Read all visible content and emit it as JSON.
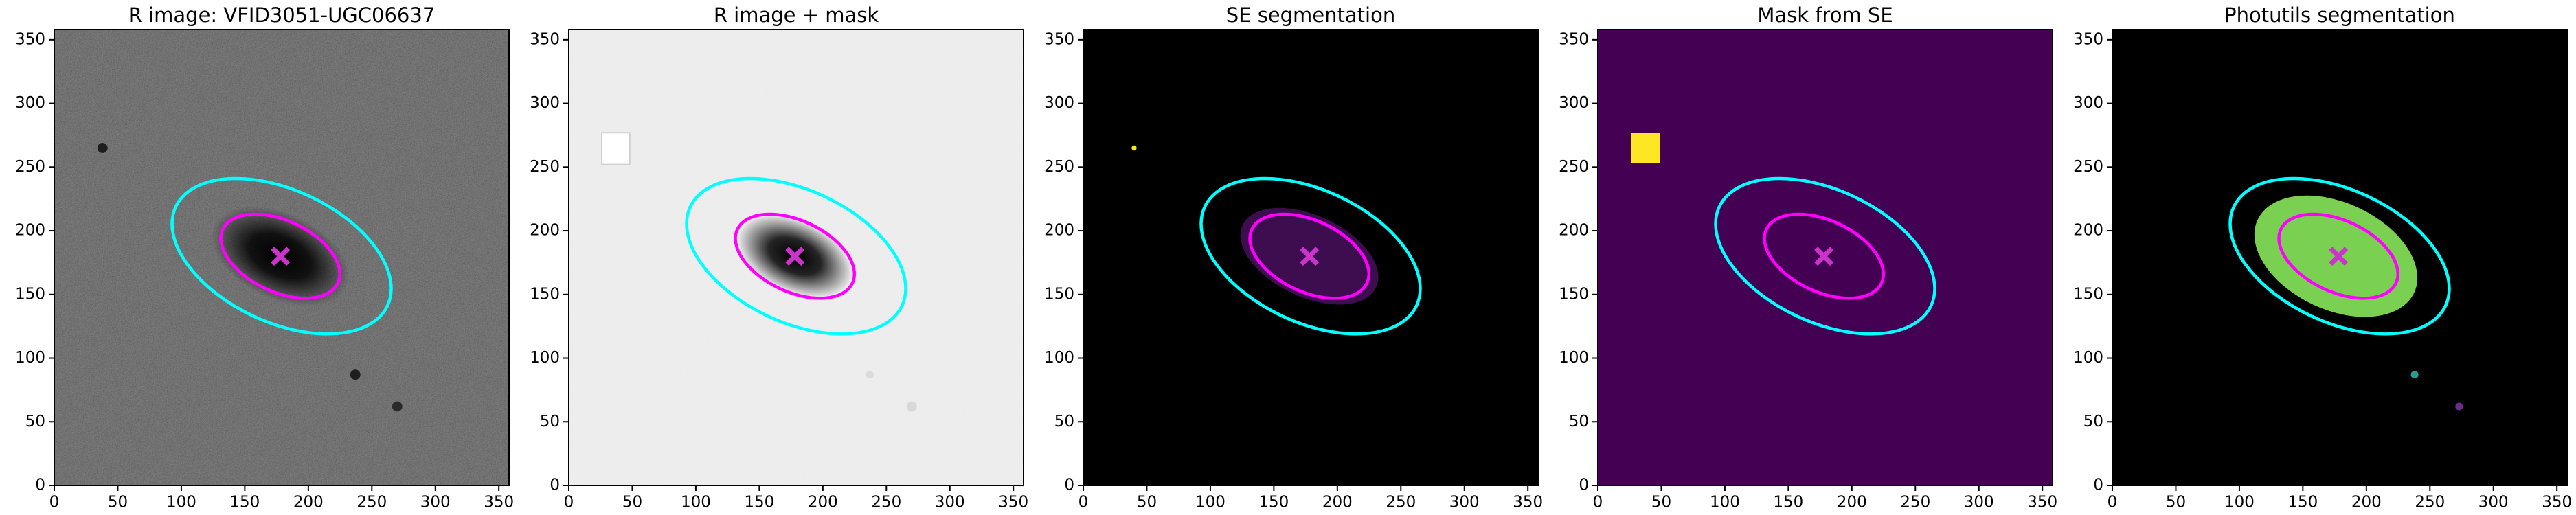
{
  "chart_data": [
    {
      "type": "image",
      "title": "R image: VFID3051-UGC06637",
      "background": "#5a5a5a",
      "noise": 0.55,
      "xlim": [
        0,
        358
      ],
      "ylim": [
        0,
        358
      ],
      "xticks": [
        0,
        50,
        100,
        150,
        200,
        250,
        300,
        350
      ],
      "yticks": [
        0,
        50,
        100,
        150,
        200,
        250,
        300,
        350
      ],
      "features": [
        {
          "kind": "glow",
          "x": 178,
          "y": 180,
          "a": 58,
          "b": 34,
          "angle": -25,
          "color": "#000000"
        },
        {
          "kind": "dot",
          "x": 38,
          "y": 265,
          "r": 4,
          "color": "#1e1e1e"
        },
        {
          "kind": "dot",
          "x": 237,
          "y": 87,
          "r": 4,
          "color": "#1e1e1e"
        },
        {
          "kind": "dot",
          "x": 270,
          "y": 62,
          "r": 4,
          "color": "#2a2a2a"
        }
      ],
      "ellipses": [
        {
          "x": 179,
          "y": 180,
          "a": 92,
          "b": 52,
          "angle": -25,
          "color": "#00ffff"
        },
        {
          "x": 178,
          "y": 180,
          "a": 50,
          "b": 28,
          "angle": -25,
          "color": "#ff00ff"
        }
      ],
      "marker": {
        "x": 178,
        "y": 180,
        "color": "#cc33cc"
      }
    },
    {
      "type": "image",
      "title": "R image + mask",
      "background": "#ececec",
      "noise": 0.12,
      "xlim": [
        0,
        358
      ],
      "ylim": [
        0,
        358
      ],
      "xticks": [
        0,
        50,
        100,
        150,
        200,
        250,
        300,
        350
      ],
      "yticks": [
        0,
        50,
        100,
        150,
        200,
        250,
        300,
        350
      ],
      "features": [
        {
          "kind": "glow",
          "x": 178,
          "y": 180,
          "a": 48,
          "b": 28,
          "angle": -25,
          "color": "#000000"
        },
        {
          "kind": "rect",
          "x0": 26,
          "x1": 48,
          "y0": 252,
          "y1": 277,
          "color": "#ffffff"
        },
        {
          "kind": "dot",
          "x": 270,
          "y": 62,
          "r": 4,
          "color": "#d8d8d8"
        },
        {
          "kind": "dot",
          "x": 237,
          "y": 87,
          "r": 3,
          "color": "#dadada"
        }
      ],
      "ellipses": [
        {
          "x": 179,
          "y": 180,
          "a": 92,
          "b": 52,
          "angle": -25,
          "color": "#00ffff"
        },
        {
          "x": 178,
          "y": 180,
          "a": 50,
          "b": 28,
          "angle": -25,
          "color": "#ff00ff"
        }
      ],
      "marker": {
        "x": 178,
        "y": 180,
        "color": "#cc33cc"
      }
    },
    {
      "type": "image",
      "title": "SE segmentation",
      "background": "#000000",
      "noise": 0,
      "xlim": [
        0,
        358
      ],
      "ylim": [
        0,
        358
      ],
      "xticks": [
        0,
        50,
        100,
        150,
        200,
        250,
        300,
        350
      ],
      "yticks": [
        0,
        50,
        100,
        150,
        200,
        250,
        300,
        350
      ],
      "features": [
        {
          "kind": "blob",
          "x": 178,
          "y": 180,
          "a": 58,
          "b": 32,
          "angle": -25,
          "color": "#3e0d50"
        },
        {
          "kind": "dot",
          "x": 40,
          "y": 265,
          "r": 2,
          "color": "#f5e61f"
        }
      ],
      "ellipses": [
        {
          "x": 179,
          "y": 180,
          "a": 92,
          "b": 52,
          "angle": -25,
          "color": "#00ffff"
        },
        {
          "x": 178,
          "y": 180,
          "a": 50,
          "b": 28,
          "angle": -25,
          "color": "#ff00ff"
        }
      ],
      "marker": {
        "x": 178,
        "y": 180,
        "color": "#cc33cc"
      }
    },
    {
      "type": "image",
      "title": "Mask from SE",
      "background": "#440154",
      "noise": 0,
      "xlim": [
        0,
        358
      ],
      "ylim": [
        0,
        358
      ],
      "xticks": [
        0,
        50,
        100,
        150,
        200,
        250,
        300,
        350
      ],
      "yticks": [
        0,
        50,
        100,
        150,
        200,
        250,
        300,
        350
      ],
      "features": [
        {
          "kind": "rect",
          "x0": 26,
          "x1": 49,
          "y0": 253,
          "y1": 277,
          "color": "#fde725"
        }
      ],
      "ellipses": [
        {
          "x": 179,
          "y": 180,
          "a": 92,
          "b": 52,
          "angle": -25,
          "color": "#00ffff"
        },
        {
          "x": 178,
          "y": 180,
          "a": 50,
          "b": 28,
          "angle": -25,
          "color": "#ff00ff"
        }
      ],
      "marker": {
        "x": 178,
        "y": 180,
        "color": "#cc33cc"
      }
    },
    {
      "type": "image",
      "title": "Photutils segmentation",
      "background": "#000000",
      "noise": 0,
      "xlim": [
        0,
        358
      ],
      "ylim": [
        0,
        358
      ],
      "xticks": [
        0,
        50,
        100,
        150,
        200,
        250,
        300,
        350
      ],
      "yticks": [
        0,
        50,
        100,
        150,
        200,
        250,
        300,
        350
      ],
      "features": [
        {
          "kind": "blob",
          "x": 176,
          "y": 180,
          "a": 68,
          "b": 42,
          "angle": -25,
          "color": "#7ad151"
        },
        {
          "kind": "dot",
          "x": 238,
          "y": 87,
          "r": 3,
          "color": "#2a9d8f"
        },
        {
          "kind": "dot",
          "x": 273,
          "y": 62,
          "r": 3,
          "color": "#6a2c8a"
        }
      ],
      "ellipses": [
        {
          "x": 179,
          "y": 180,
          "a": 92,
          "b": 52,
          "angle": -25,
          "color": "#00ffff"
        },
        {
          "x": 178,
          "y": 180,
          "a": 50,
          "b": 28,
          "angle": -25,
          "color": "#ff00ff"
        }
      ],
      "marker": {
        "x": 178,
        "y": 180,
        "color": "#cc33cc"
      }
    }
  ]
}
